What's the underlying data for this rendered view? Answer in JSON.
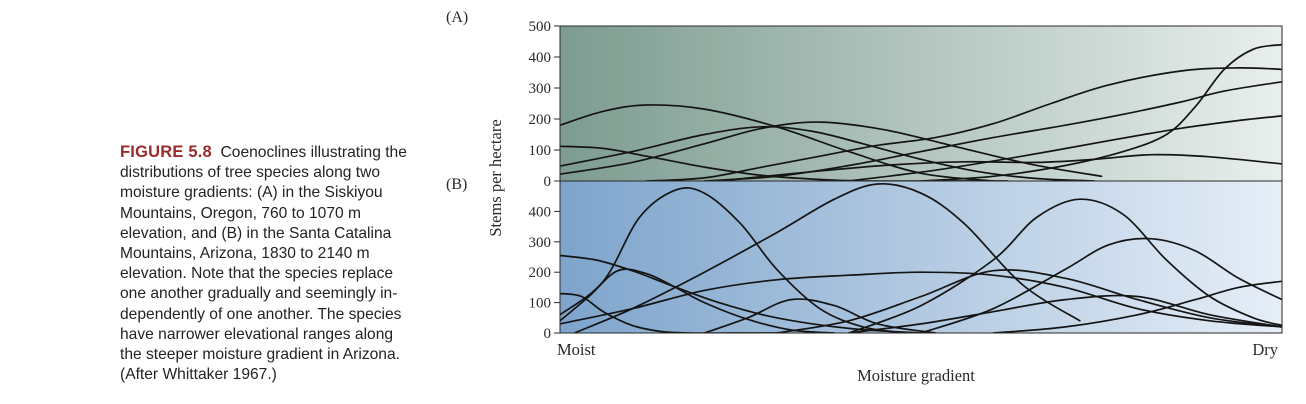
{
  "caption": {
    "figure_number": "FIGURE 5.8",
    "lines": [
      "Coenoclines illustrating the",
      "distributions of tree species along two",
      "moisture gradients: (A) in the Siskiyou",
      "Mountains, Oregon, 760 to 1070 m",
      "elevation, and (B) in the Santa Catalina",
      "Mountains, Arizona, 1830 to 2140 m",
      "elevation. Note that the species replace",
      "one another gradually and seemingly in-",
      "dependently of one another. The species",
      "have narrower elevational ranges along",
      "the steeper moisture gradient in Arizona.",
      "(After Whittaker 1967.)"
    ]
  },
  "colors": {
    "panel_a_dark": "#7d9c90",
    "panel_a_light": "#e9efec",
    "panel_b_dark": "#7ea4cc",
    "panel_b_light": "#e6eef7",
    "curve": "#151515"
  },
  "chart_data": [
    {
      "type": "line",
      "panel_label": "(A)",
      "ylabel": "Stems per hectare",
      "ylim": [
        0,
        500
      ],
      "yticks": [
        0,
        100,
        200,
        300,
        400,
        500
      ],
      "xlim": [
        0,
        100
      ],
      "series": [
        {
          "x": [
            0,
            6,
            12,
            20,
            30,
            40,
            50,
            60
          ],
          "values": [
            180,
            225,
            245,
            232,
            175,
            95,
            25,
            0
          ]
        },
        {
          "x": [
            0,
            6,
            12,
            20,
            28,
            35,
            42,
            52,
            62
          ],
          "values": [
            112,
            105,
            80,
            45,
            18,
            6,
            0,
            0,
            0
          ]
        },
        {
          "x": [
            0,
            10,
            20,
            28,
            35,
            42,
            50,
            58,
            66,
            74
          ],
          "values": [
            48,
            95,
            150,
            175,
            160,
            120,
            70,
            30,
            8,
            0
          ]
        },
        {
          "x": [
            0,
            10,
            20,
            28,
            36,
            45,
            55,
            65,
            75
          ],
          "values": [
            22,
            60,
            120,
            170,
            190,
            165,
            110,
            55,
            15
          ]
        },
        {
          "x": [
            12,
            20,
            28,
            36,
            44,
            52,
            60,
            68,
            76,
            86,
            94,
            100
          ],
          "values": [
            0,
            10,
            45,
            80,
            115,
            140,
            185,
            250,
            310,
            355,
            365,
            360
          ]
        },
        {
          "x": [
            20,
            30,
            40,
            50,
            60,
            70,
            78,
            86,
            92,
            100
          ],
          "values": [
            0,
            15,
            50,
            95,
            140,
            180,
            215,
            255,
            290,
            320
          ]
        },
        {
          "x": [
            22,
            34,
            46,
            56,
            66,
            74,
            82,
            90,
            100
          ],
          "values": [
            0,
            28,
            52,
            62,
            60,
            70,
            85,
            78,
            55
          ]
        },
        {
          "x": [
            40,
            52,
            64,
            76,
            86,
            94,
            100
          ],
          "values": [
            0,
            35,
            80,
            130,
            170,
            195,
            210
          ]
        },
        {
          "x": [
            50,
            60,
            70,
            78,
            84,
            88,
            92,
            96,
            100
          ],
          "values": [
            0,
            15,
            50,
            95,
            150,
            240,
            360,
            425,
            440
          ]
        }
      ]
    },
    {
      "type": "line",
      "panel_label": "(B)",
      "ylabel": "Stems per hectare",
      "ylim": [
        0,
        500
      ],
      "yticks": [
        0,
        100,
        200,
        300,
        400
      ],
      "xlabel": "Moisture gradient",
      "x_end_labels": [
        "Moist",
        "Dry"
      ],
      "xlim": [
        0,
        100
      ],
      "series": [
        {
          "x": [
            0,
            5,
            10,
            15,
            22,
            30,
            40,
            50
          ],
          "values": [
            255,
            240,
            205,
            160,
            100,
            50,
            15,
            0
          ]
        },
        {
          "x": [
            0,
            3,
            6,
            10,
            14,
            18,
            24,
            30
          ],
          "values": [
            130,
            120,
            70,
            25,
            5,
            0,
            0,
            0
          ]
        },
        {
          "x": [
            0,
            4,
            8,
            12,
            16,
            20,
            26,
            32,
            38
          ],
          "values": [
            40,
            120,
            205,
            195,
            150,
            100,
            45,
            10,
            0
          ]
        },
        {
          "x": [
            0,
            6,
            11,
            16,
            20,
            25,
            30,
            36,
            42,
            48
          ],
          "values": [
            60,
            170,
            380,
            470,
            460,
            360,
            210,
            80,
            20,
            0
          ]
        },
        {
          "x": [
            2,
            10,
            20,
            30,
            38,
            44,
            50,
            56,
            64,
            72
          ],
          "values": [
            0,
            80,
            200,
            330,
            440,
            490,
            460,
            360,
            160,
            40
          ]
        },
        {
          "x": [
            0,
            10,
            20,
            30,
            40,
            50,
            60,
            70,
            80,
            90,
            100
          ],
          "values": [
            30,
            80,
            140,
            175,
            190,
            200,
            190,
            150,
            80,
            40,
            20
          ]
        },
        {
          "x": [
            20,
            26,
            32,
            38,
            44,
            52
          ],
          "values": [
            0,
            50,
            110,
            90,
            30,
            0
          ]
        },
        {
          "x": [
            30,
            40,
            50,
            60,
            70,
            80,
            90,
            100
          ],
          "values": [
            0,
            40,
            120,
            205,
            180,
            110,
            50,
            20
          ]
        },
        {
          "x": [
            40,
            50,
            60,
            66,
            72,
            78,
            84,
            90,
            96,
            100
          ],
          "values": [
            0,
            90,
            240,
            380,
            440,
            390,
            240,
            120,
            50,
            25
          ]
        },
        {
          "x": [
            50,
            60,
            70,
            76,
            82,
            88,
            94,
            100
          ],
          "values": [
            0,
            80,
            210,
            290,
            310,
            270,
            180,
            110
          ]
        },
        {
          "x": [
            40,
            50,
            60,
            70,
            80,
            90,
            100
          ],
          "values": [
            0,
            30,
            70,
            110,
            120,
            60,
            20
          ]
        },
        {
          "x": [
            60,
            70,
            80,
            88,
            94,
            100
          ],
          "values": [
            0,
            20,
            60,
            110,
            150,
            170
          ]
        }
      ]
    }
  ]
}
